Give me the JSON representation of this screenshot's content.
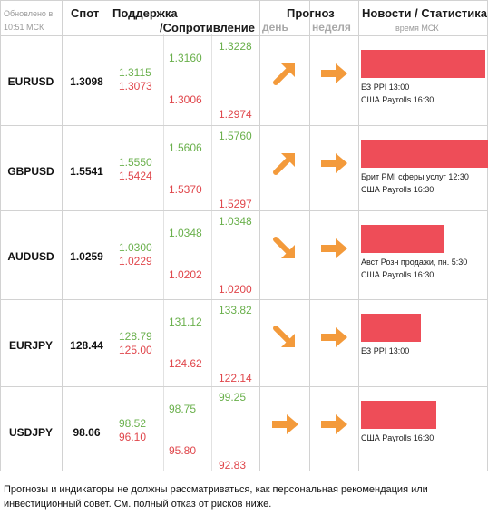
{
  "header": {
    "updated": "Обновлено в 10:51 МСК",
    "spot": "Спот",
    "support": "Поддержка",
    "resistance": "/Сопротивление",
    "forecast": "Прогноз",
    "day": "день",
    "week": "неделя",
    "news": "Новости / Статистика",
    "time_msk": "время МСК"
  },
  "rows": [
    {
      "pair": "EURUSD",
      "spot": "1.3098",
      "s1_top": "1.3115",
      "s1_bot": "1.3073",
      "s2_top": "1.3160",
      "s2_bot": "1.3006",
      "s3_top": "1.3228",
      "s3_bot": "1.2974",
      "day_arrow": "arrow-up-right-icon",
      "week_arrow": "arrow-right-icon",
      "news_level": 0.98,
      "news_1": "ЕЗ PPI 13:00",
      "news_2": "США Payrolls 16:30"
    },
    {
      "pair": "GBPUSD",
      "spot": "1.5541",
      "s1_top": "1.5550",
      "s1_bot": "1.5424",
      "s2_top": "1.5606",
      "s2_bot": "1.5370",
      "s3_top": "1.5760",
      "s3_bot": "1.5297",
      "day_arrow": "arrow-up-right-icon",
      "week_arrow": "arrow-right-icon",
      "news_level": 1.0,
      "news_1": "Брит PMI сферы услуг 12:30",
      "news_2": "США Payrolls 16:30"
    },
    {
      "pair": "AUDUSD",
      "spot": "1.0259",
      "s1_top": "1.0300",
      "s1_bot": "1.0229",
      "s2_top": "1.0348",
      "s2_bot": "1.0202",
      "s3_top": "1.0348",
      "s3_bot": "1.0200",
      "day_arrow": "arrow-down-right-icon",
      "week_arrow": "arrow-right-icon",
      "news_level": 0.66,
      "news_1": "Авст Розн продажи, пн. 5:30",
      "news_2": "США Payrolls 16:30"
    },
    {
      "pair": "EURJPY",
      "spot": "128.44",
      "s1_top": "128.79",
      "s1_bot": "125.00",
      "s2_top": "131.12",
      "s2_bot": "124.62",
      "s3_top": "133.82",
      "s3_bot": "122.14",
      "day_arrow": "arrow-down-right-icon",
      "week_arrow": "arrow-right-icon",
      "news_level": 0.47,
      "news_1": "ЕЗ PPI 13:00",
      "news_2": ""
    },
    {
      "pair": "USDJPY",
      "spot": "98.06",
      "s1_top": "98.52",
      "s1_bot": "96.10",
      "s2_top": "98.75",
      "s2_bot": "95.80",
      "s3_top": "99.25",
      "s3_bot": "92.83",
      "day_arrow": "arrow-right-icon",
      "week_arrow": "arrow-right-icon",
      "news_level": 0.59,
      "news_1": "США Payrolls 16:30",
      "news_2": ""
    }
  ],
  "disclaimer": "Прогнозы и индикаторы не должны рассматриваться, как персональная рекомендация или инвестиционный совет. См. полный отказ от рисков ниже.",
  "colors": {
    "support_green": "#6ab04c",
    "resistance_red": "#e0474c",
    "arrow_orange": "#f39a3b",
    "news_bar": "#ee4d58",
    "grid": "#d2d2d2"
  }
}
